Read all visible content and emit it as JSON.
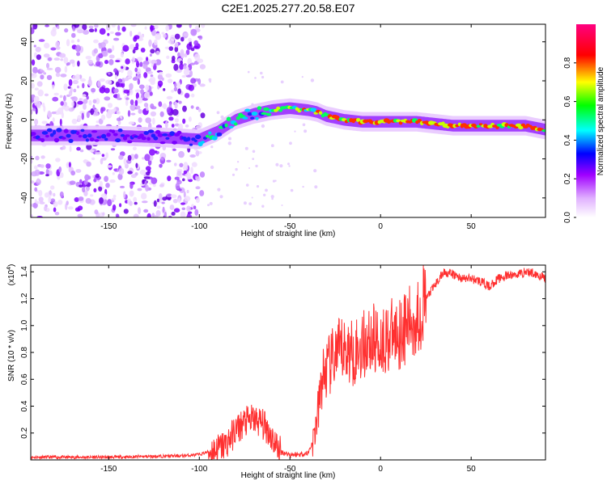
{
  "figure_title": "C2E1.2025.277.20.58.E07",
  "chart_data": [
    {
      "type": "heatmap",
      "title": "C2E1.2025.277.20.58.E07",
      "xlabel": "Height of straight line (km)",
      "ylabel": "Frequency (Hz)",
      "xlim": [
        -193,
        91
      ],
      "ylim": [
        -50,
        49
      ],
      "x_ticks": [
        -150,
        -100,
        -50,
        0,
        50
      ],
      "y_ticks": [
        -40,
        -20,
        0,
        20,
        40
      ],
      "colorbar": {
        "label": "Normalized spectral amplitude",
        "range": [
          0,
          1
        ],
        "ticks": [
          "0.0",
          "0.2",
          "0.4",
          "0.6",
          "0.8"
        ],
        "tick_values": [
          0,
          0.2,
          0.4,
          0.6,
          0.8
        ],
        "colors": [
          "#ffffff",
          "#e0b0ff",
          "#a000ff",
          "#0000ff",
          "#00ffff",
          "#00ff00",
          "#ffff00",
          "#ff0000",
          "#ff00a0"
        ]
      },
      "ridge": {
        "x": [
          -193,
          -150,
          -120,
          -100,
          -90,
          -80,
          -70,
          -60,
          -50,
          -40,
          -35,
          -30,
          -20,
          -10,
          0,
          10,
          20,
          30,
          40,
          50,
          60,
          70,
          80,
          91
        ],
        "y": [
          -8,
          -8,
          -9,
          -10,
          -6,
          0,
          3,
          5,
          6,
          5,
          4,
          2,
          0,
          -1,
          -1,
          -1,
          -1,
          -2,
          -3,
          -3,
          -3,
          -3,
          -3,
          -5
        ]
      },
      "noise_region_x": [
        -193,
        -98
      ]
    },
    {
      "type": "line",
      "xlabel": "Height of straight line (km)",
      "ylabel": "SNR (10 * v/v)",
      "y_multiplier": "(x10",
      "y_multiplier_exp": "4",
      "y_multiplier_close": ")",
      "xlim": [
        -193,
        91
      ],
      "ylim": [
        0,
        1.45
      ],
      "x_ticks": [
        -150,
        -100,
        -50,
        0,
        50
      ],
      "y_ticks": [
        0.2,
        0.4,
        0.6,
        0.8,
        1.0,
        1.2,
        1.4
      ],
      "y_tick_labels": [
        "0.2",
        "0.4",
        "0.6",
        "0.8",
        "1.0",
        "1.2",
        "1.4"
      ],
      "series": [
        {
          "name": "SNR",
          "color": "#ff3030",
          "x": [
            -193,
            -150,
            -110,
            -100,
            -90,
            -85,
            -80,
            -75,
            -70,
            -66,
            -62,
            -58,
            -55,
            -50,
            -45,
            -40,
            -37,
            -34,
            -32,
            -28,
            -25,
            -20,
            -15,
            -10,
            -5,
            0,
            5,
            10,
            15,
            20,
            25,
            30,
            35,
            40,
            45,
            50,
            55,
            60,
            65,
            70,
            75,
            80,
            85,
            91
          ],
          "values": [
            0.02,
            0.02,
            0.03,
            0.04,
            0.08,
            0.12,
            0.22,
            0.28,
            0.3,
            0.28,
            0.22,
            0.12,
            0.06,
            0.04,
            0.04,
            0.05,
            0.15,
            0.4,
            0.62,
            0.7,
            0.78,
            0.82,
            0.8,
            0.85,
            0.9,
            0.88,
            0.92,
            0.95,
            1.0,
            1.05,
            1.2,
            1.3,
            1.4,
            1.38,
            1.35,
            1.35,
            1.33,
            1.29,
            1.35,
            1.37,
            1.38,
            1.4,
            1.39,
            1.35
          ]
        }
      ]
    }
  ]
}
